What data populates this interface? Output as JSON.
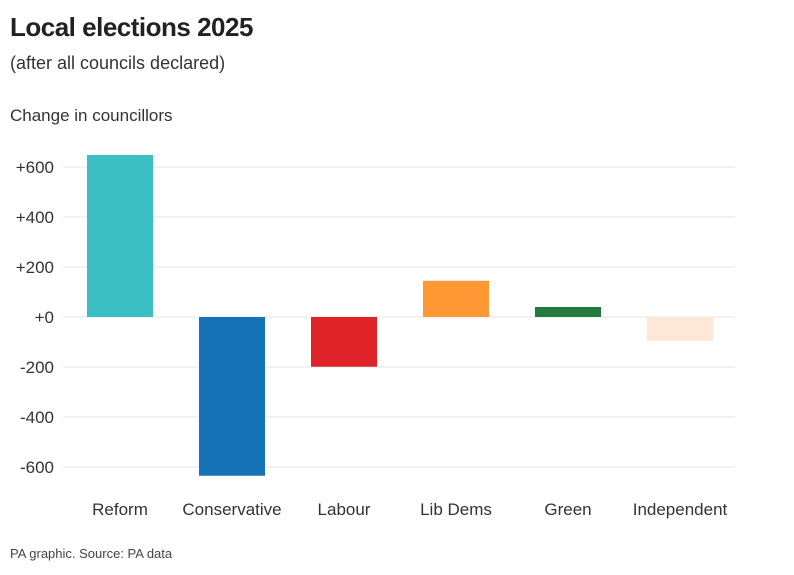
{
  "title": "Local elections 2025",
  "subtitle": "(after all councils declared)",
  "source": "PA graphic. Source: PA data",
  "chart_data": {
    "type": "bar",
    "title": "Local elections 2025",
    "subtitle": "(after all councils declared)",
    "ylabel": "Change in councillors",
    "xlabel": "",
    "categories": [
      "Reform",
      "Conservative",
      "Labour",
      "Lib Dems",
      "Green",
      "Independent"
    ],
    "values": [
      648,
      -635,
      -199,
      145,
      40,
      -95
    ],
    "colors": [
      "#3bbfc2",
      "#1672b6",
      "#df2329",
      "#fd9834",
      "#24793f",
      "#fde8d8"
    ],
    "ylim": [
      -640,
      660
    ],
    "yticks": [
      600,
      400,
      200,
      0,
      -200,
      -400,
      -600
    ],
    "ytick_labels": [
      "+600",
      "+400",
      "+200",
      "+0",
      "-200",
      "-400",
      "-600"
    ],
    "grid": true,
    "legend": "none"
  }
}
